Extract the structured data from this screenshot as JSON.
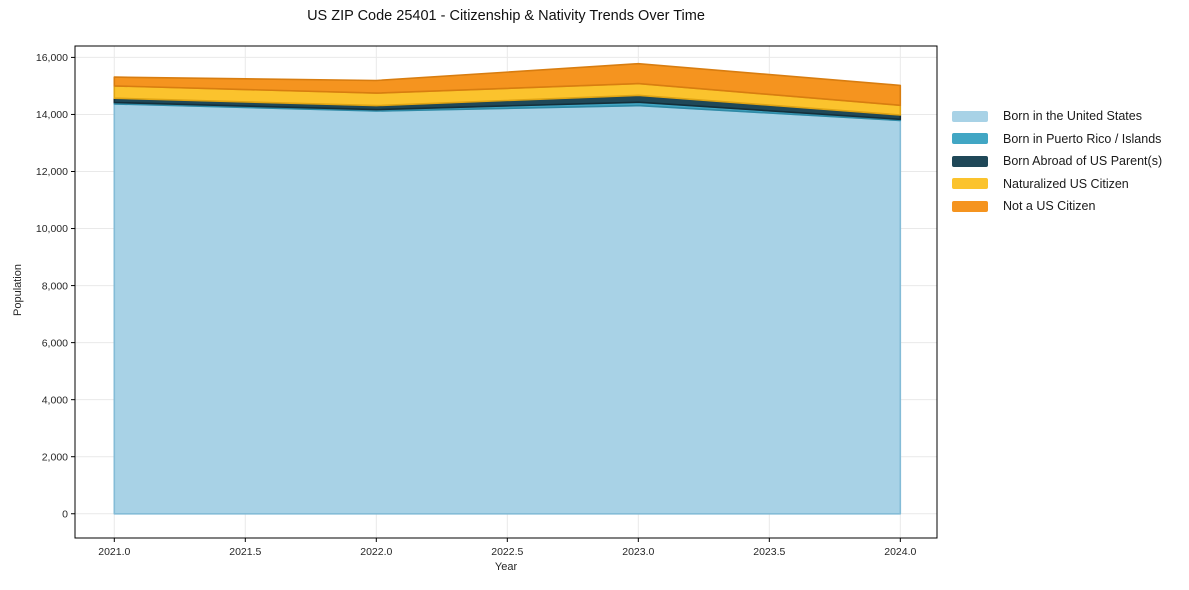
{
  "chart_data": {
    "type": "area",
    "stacked": true,
    "title": "US ZIP Code 25401 - Citizenship & Nativity Trends Over Time",
    "xlabel": "Year",
    "ylabel": "Population",
    "x": [
      2021,
      2022,
      2023,
      2024
    ],
    "series": [
      {
        "name": "Born in the United States",
        "color": "#a8d2e6",
        "edge": "#84bcd7",
        "values": [
          14370,
          14120,
          14310,
          13790
        ]
      },
      {
        "name": "Born in Puerto Rico / Islands",
        "color": "#41a6c4",
        "edge": "#2f8aa6",
        "values": [
          50,
          50,
          120,
          40
        ]
      },
      {
        "name": "Born Abroad of US Parent(s)",
        "color": "#1f4858",
        "edge": "#142f3a",
        "values": [
          150,
          140,
          240,
          150
        ]
      },
      {
        "name": "Naturalized US Citizen",
        "color": "#fbc32d",
        "edge": "#dfa414",
        "values": [
          430,
          440,
          410,
          340
        ]
      },
      {
        "name": "Not a US Citizen",
        "color": "#f5941f",
        "edge": "#d87d10",
        "values": [
          310,
          440,
          700,
          700
        ]
      }
    ],
    "xlim": [
      2020.85,
      2024.14
    ],
    "ylim": [
      -850,
      16400
    ],
    "xtick_values": [
      2021.0,
      2021.5,
      2022.0,
      2022.5,
      2023.0,
      2023.5,
      2024.0
    ],
    "xtick_labels": [
      "2021.0",
      "2021.5",
      "2022.0",
      "2022.5",
      "2023.0",
      "2023.5",
      "2024.0"
    ],
    "ytick_values": [
      0,
      2000,
      4000,
      6000,
      8000,
      10000,
      12000,
      14000,
      16000
    ],
    "ytick_labels": [
      "0",
      "2,000",
      "4,000",
      "6,000",
      "8,000",
      "10,000",
      "12,000",
      "14,000",
      "16,000"
    ],
    "grid": true,
    "legend_position": "right",
    "colors": {
      "grid": "#e9e9e9",
      "spine": "#000000",
      "tick_text": "#262626"
    }
  }
}
